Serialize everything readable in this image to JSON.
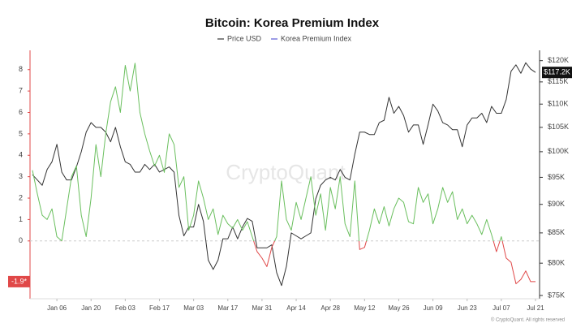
{
  "chart_data": {
    "type": "line",
    "title": "Bitcoin: Korea Premium Index",
    "watermark": "CryptoQuant",
    "footer": "© CryptoQuant. All rights reserved",
    "x": [
      "Dec 27",
      "Dec 29",
      "Dec 31",
      "Jan 02",
      "Jan 04",
      "Jan 06",
      "Jan 08",
      "Jan 10",
      "Jan 12",
      "Jan 14",
      "Jan 16",
      "Jan 18",
      "Jan 20",
      "Jan 22",
      "Jan 24",
      "Jan 26",
      "Jan 28",
      "Jan 30",
      "Feb 01",
      "Feb 03",
      "Feb 05",
      "Feb 07",
      "Feb 09",
      "Feb 11",
      "Feb 13",
      "Feb 15",
      "Feb 17",
      "Feb 19",
      "Feb 21",
      "Feb 23",
      "Feb 25",
      "Feb 27",
      "Mar 01",
      "Mar 03",
      "Mar 05",
      "Mar 07",
      "Mar 09",
      "Mar 11",
      "Mar 13",
      "Mar 15",
      "Mar 17",
      "Mar 19",
      "Mar 21",
      "Mar 23",
      "Mar 25",
      "Mar 27",
      "Mar 29",
      "Mar 31",
      "Apr 02",
      "Apr 04",
      "Apr 06",
      "Apr 08",
      "Apr 10",
      "Apr 12",
      "Apr 14",
      "Apr 16",
      "Apr 18",
      "Apr 20",
      "Apr 22",
      "Apr 24",
      "Apr 26",
      "Apr 28",
      "Apr 30",
      "May 02",
      "May 04",
      "May 06",
      "May 08",
      "May 10",
      "May 12",
      "May 14",
      "May 16",
      "May 18",
      "May 20",
      "May 22",
      "May 24",
      "May 26",
      "May 28",
      "May 30",
      "Jun 01",
      "Jun 03",
      "Jun 05",
      "Jun 07",
      "Jun 09",
      "Jun 11",
      "Jun 13",
      "Jun 15",
      "Jun 17",
      "Jun 19",
      "Jun 21",
      "Jun 23",
      "Jun 25",
      "Jun 27",
      "Jun 29",
      "Jul 01",
      "Jul 03",
      "Jul 05",
      "Jul 07",
      "Jul 09",
      "Jul 11",
      "Jul 13",
      "Jul 15",
      "Jul 17",
      "Jul 19",
      "Jul 21"
    ],
    "xticks": [
      "Jan 06",
      "Jan 20",
      "Feb 03",
      "Feb 17",
      "Mar 03",
      "Mar 17",
      "Mar 31",
      "Apr 14",
      "Apr 28",
      "May 12",
      "May 26",
      "Jun 09",
      "Jun 23",
      "Jul 07",
      "Jul 21"
    ],
    "series": [
      {
        "name": "Price USD",
        "color": "#333333",
        "axis": "y2",
        "values": [
          95500,
          94500,
          93500,
          96500,
          98000,
          101500,
          96000,
          94500,
          94500,
          97000,
          100000,
          104000,
          106000,
          105000,
          105000,
          104000,
          102000,
          105000,
          101000,
          98000,
          97500,
          96000,
          96000,
          97500,
          96500,
          97500,
          96000,
          96500,
          97000,
          96000,
          88000,
          84500,
          86000,
          86000,
          90000,
          87000,
          80500,
          79000,
          80500,
          84000,
          84000,
          86000,
          84000,
          86000,
          87500,
          87000,
          82500,
          82500,
          82500,
          83000,
          78500,
          76500,
          79500,
          85000,
          84500,
          84000,
          84500,
          85000,
          91000,
          93500,
          94500,
          95000,
          94500,
          96500,
          95000,
          94500,
          99500,
          104000,
          104000,
          103500,
          103500,
          106000,
          106500,
          111500,
          108000,
          109500,
          107500,
          104000,
          105500,
          105500,
          101500,
          105500,
          110000,
          108500,
          106000,
          105500,
          104500,
          104500,
          101000,
          105500,
          107000,
          107000,
          108000,
          106000,
          109500,
          108000,
          108000,
          111000,
          117500,
          119000,
          117000,
          119500,
          118000,
          117200
        ]
      },
      {
        "name": "Korea Premium Index",
        "color": "#5b5bd6",
        "positive_color": "#6abf5e",
        "negative_color": "#e04848",
        "values": [
          3.3,
          2.2,
          1.2,
          1.0,
          1.5,
          0.2,
          0.0,
          1.5,
          3.0,
          3.5,
          1.2,
          0.2,
          2.0,
          4.5,
          3.0,
          5.0,
          6.5,
          7.2,
          6.0,
          8.2,
          7.0,
          8.3,
          6.0,
          5.0,
          4.2,
          3.5,
          4.0,
          3.2,
          5.0,
          4.5,
          2.5,
          3.0,
          0.5,
          1.2,
          2.8,
          2.0,
          1.0,
          1.5,
          0.3,
          1.2,
          0.8,
          0.6,
          1.0,
          0.5,
          0.9,
          0.2,
          -0.5,
          -0.8,
          -1.2,
          -0.3,
          0.2,
          2.8,
          1.0,
          0.5,
          1.8,
          1.0,
          2.0,
          3.0,
          1.2,
          2.2,
          0.5,
          2.5,
          1.5,
          3.0,
          0.8,
          0.2,
          2.8,
          -0.4,
          -0.3,
          0.5,
          1.5,
          0.8,
          1.6,
          0.7,
          1.5,
          2.0,
          1.8,
          0.9,
          0.8,
          2.5,
          1.8,
          2.2,
          0.8,
          1.5,
          2.5,
          1.8,
          2.3,
          1.0,
          1.5,
          0.8,
          1.2,
          0.8,
          0.3,
          1.0,
          0.3,
          -0.5,
          0.2,
          -0.8,
          -1.0,
          -2.0,
          -1.8,
          -1.4,
          -1.9,
          -1.9
        ]
      }
    ],
    "ylim": [
      -2.7,
      8.9
    ],
    "yticks": [
      0,
      1,
      2,
      3,
      4,
      5,
      6,
      7,
      8
    ],
    "y2lim": [
      74500,
      122500
    ],
    "y2_log": true,
    "y2ticks": [
      {
        "value": 75000,
        "label": "$75K"
      },
      {
        "value": 80000,
        "label": "$80K"
      },
      {
        "value": 85000,
        "label": "$85K"
      },
      {
        "value": 90000,
        "label": "$90K"
      },
      {
        "value": 95000,
        "label": "$95K"
      },
      {
        "value": 100000,
        "label": "$100K"
      },
      {
        "value": 105000,
        "label": "$105K"
      },
      {
        "value": 110000,
        "label": "$110K"
      },
      {
        "value": 115000,
        "label": "$115K"
      },
      {
        "value": 120000,
        "label": "$120K"
      }
    ],
    "zero_line": true,
    "annotations": [
      {
        "text": "-1.9*",
        "value": -1.9,
        "axis": "y",
        "color": "#e04848"
      },
      {
        "text": "$117.2K",
        "value": 117200,
        "axis": "y2",
        "color": "#111111"
      }
    ]
  }
}
